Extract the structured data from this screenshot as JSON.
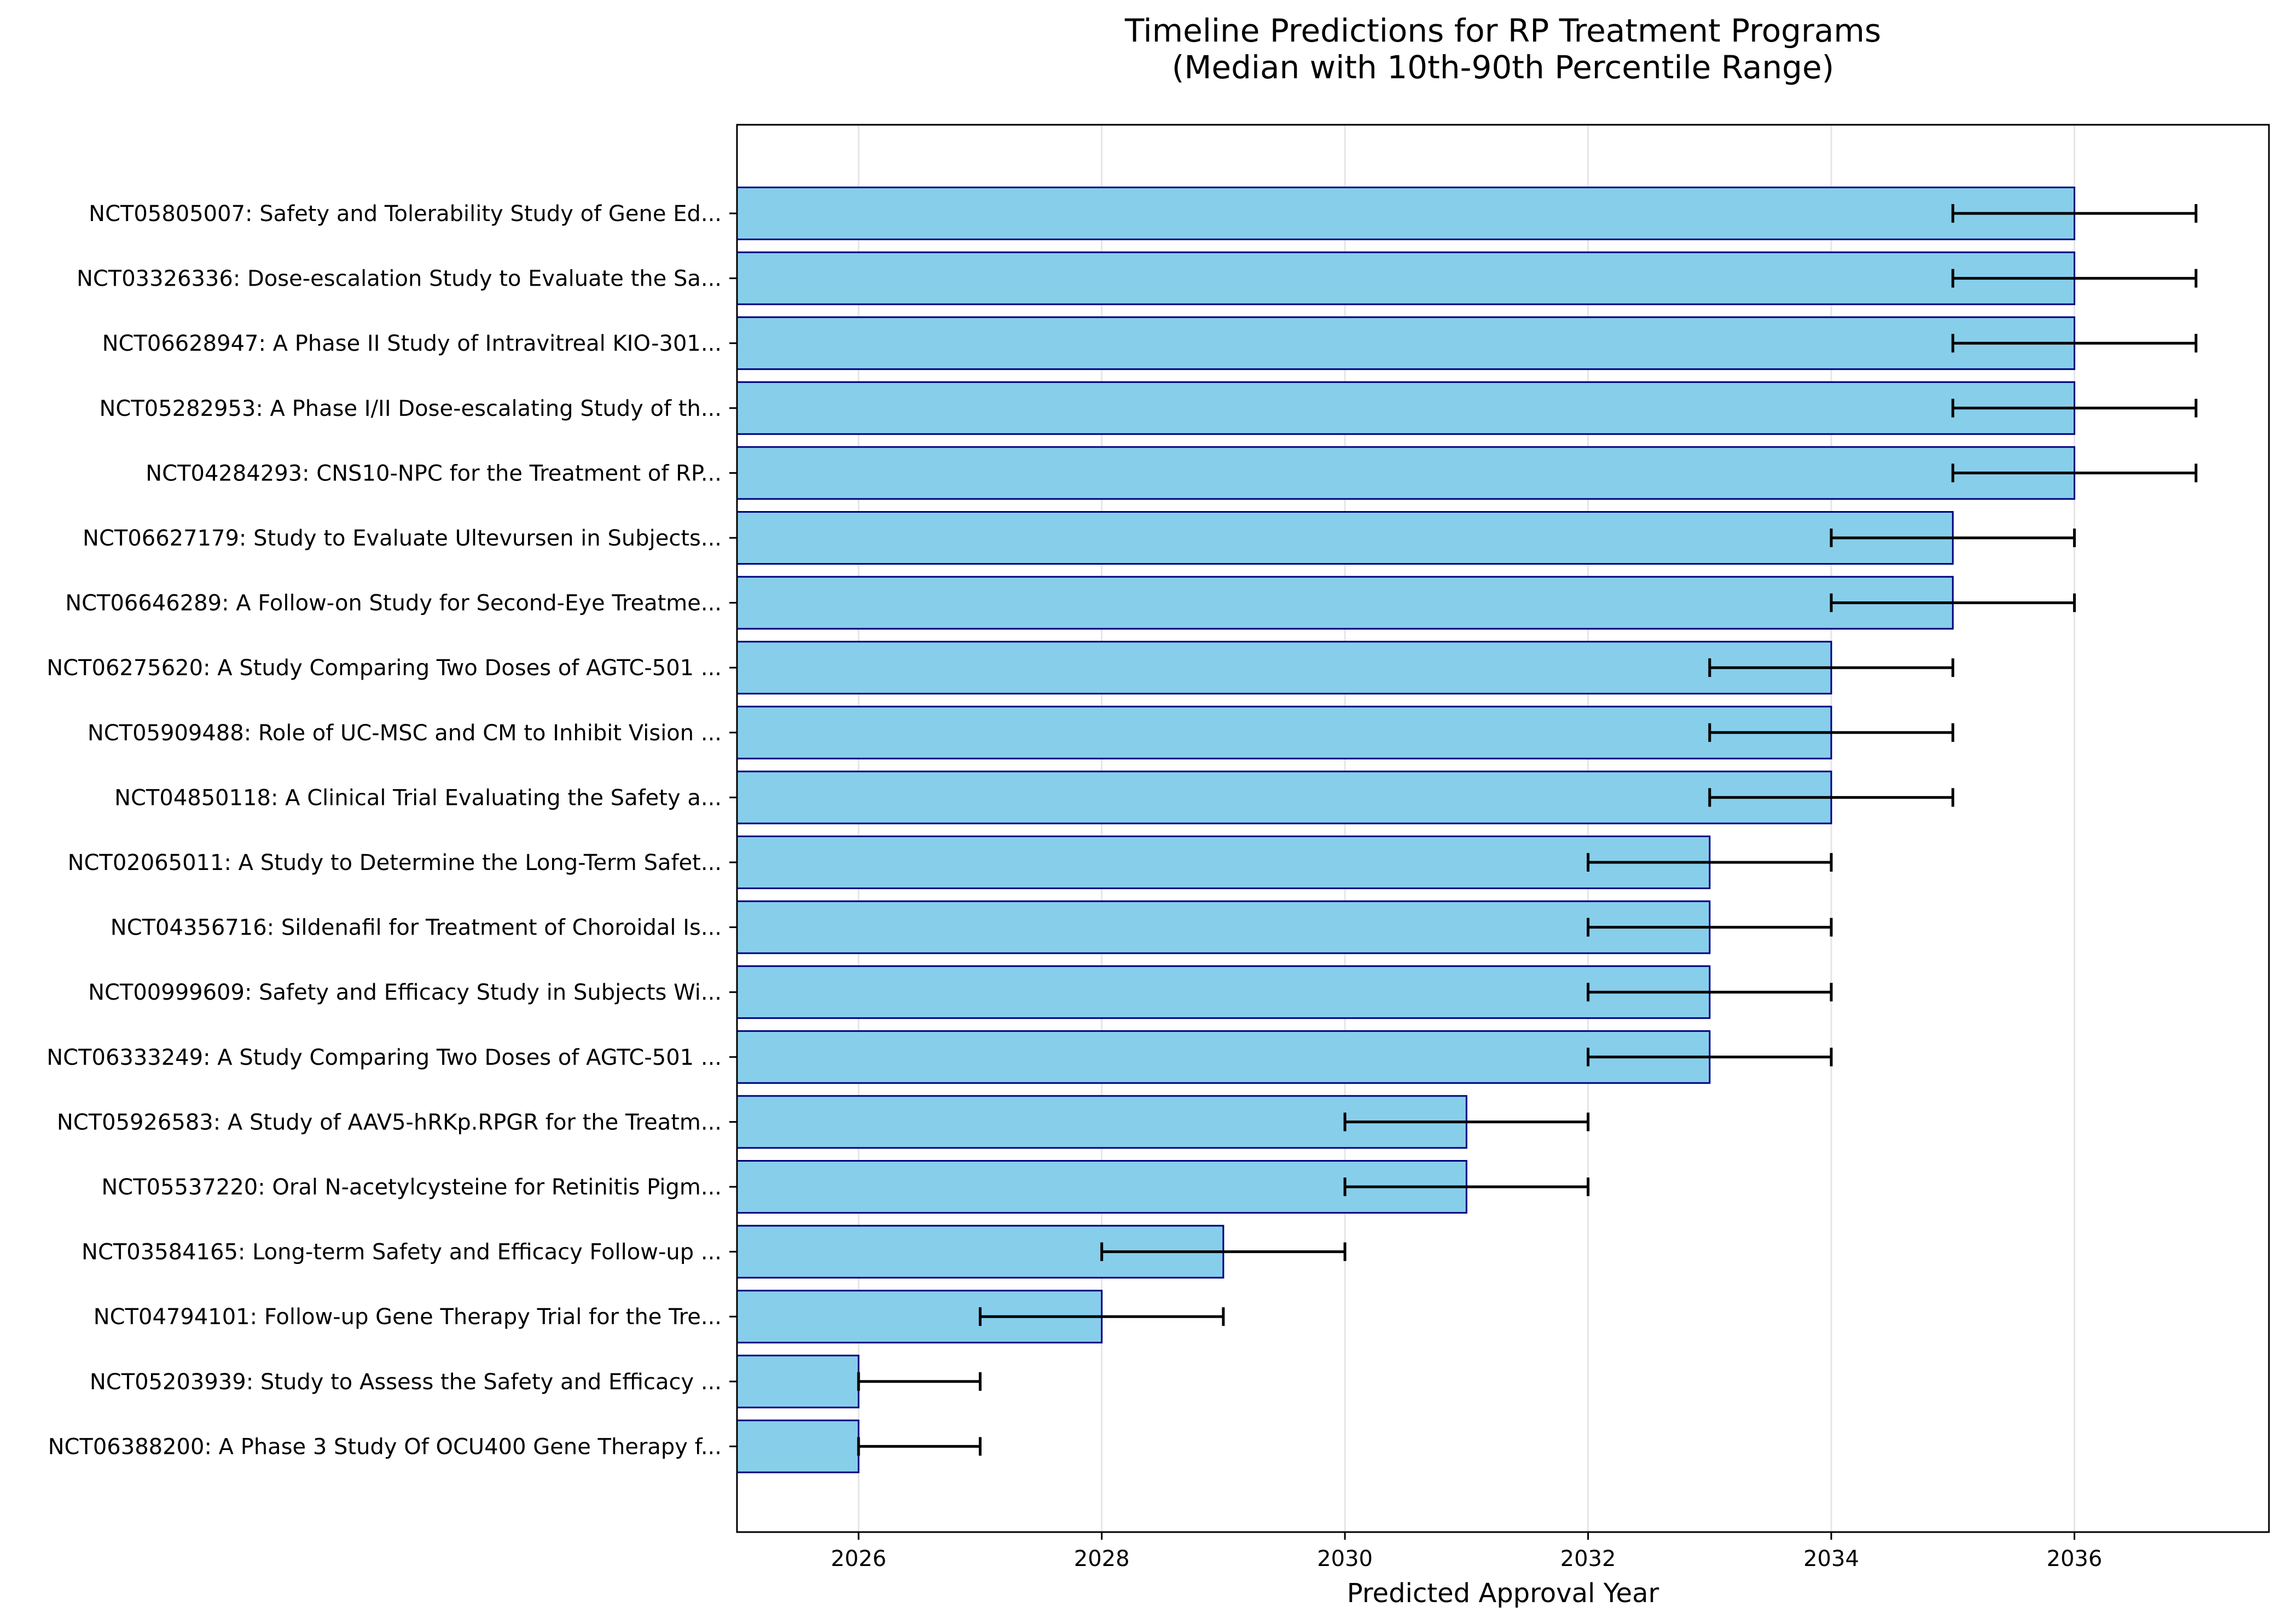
{
  "chart_data": {
    "type": "bar",
    "orientation": "horizontal",
    "title": "Timeline Predictions for RP Treatment Programs",
    "subtitle": "(Median with 10th-90th Percentile Range)",
    "xlabel": "Predicted Approval Year",
    "ylabel": "",
    "xlim": [
      2025,
      2037.6
    ],
    "xticks": [
      2026,
      2028,
      2030,
      2032,
      2034,
      2036
    ],
    "grid": "vertical",
    "legend": "none",
    "colors": {
      "bar_fill": "#87ceeb",
      "bar_edge": "#000080",
      "error_bar": "#000000",
      "grid": "#e6e6e6"
    },
    "categories": [
      "NCT05805007: Safety and Tolerability Study of Gene Ed...",
      "NCT03326336: Dose-escalation Study to Evaluate the Sa...",
      "NCT06628947: A Phase II Study of Intravitreal KIO-301...",
      "NCT05282953: A Phase I/II Dose-escalating Study of th...",
      "NCT04284293: CNS10-NPC for the Treatment of RP...",
      "NCT06627179: Study to Evaluate Ultevursen in Subjects...",
      "NCT06646289: A Follow-on Study for Second-Eye Treatme...",
      "NCT06275620: A Study Comparing Two Doses of AGTC-501 ...",
      "NCT05909488: Role of UC-MSC and CM to Inhibit Vision ...",
      "NCT04850118: A Clinical Trial Evaluating the Safety a...",
      "NCT02065011: A Study to Determine the Long-Term Safet...",
      "NCT04356716: Sildenafil for Treatment of Choroidal Is...",
      "NCT00999609: Safety and Efficacy Study in Subjects Wi...",
      "NCT06333249: A Study Comparing Two Doses of AGTC-501 ...",
      "NCT05926583: A Study of AAV5-hRKp.RPGR for the Treatm...",
      "NCT05537220: Oral N-acetylcysteine for Retinitis Pigm...",
      "NCT03584165: Long-term Safety and Efficacy Follow-up ...",
      "NCT04794101: Follow-up Gene Therapy Trial for the Tre...",
      "NCT05203939: Study to Assess the Safety and Efficacy ...",
      "NCT06388200: A Phase 3 Study Of OCU400 Gene Therapy f..."
    ],
    "median": [
      2036,
      2036,
      2036,
      2036,
      2036,
      2035,
      2035,
      2034,
      2034,
      2034,
      2033,
      2033,
      2033,
      2033,
      2031,
      2031,
      2029,
      2028,
      2026,
      2026
    ],
    "p10": [
      2035,
      2035,
      2035,
      2035,
      2035,
      2034,
      2034,
      2033,
      2033,
      2033,
      2032,
      2032,
      2032,
      2032,
      2030,
      2030,
      2028,
      2027,
      2026,
      2026
    ],
    "p90": [
      2037,
      2037,
      2037,
      2037,
      2037,
      2036,
      2036,
      2035,
      2035,
      2035,
      2034,
      2034,
      2034,
      2034,
      2032,
      2032,
      2030,
      2029,
      2027,
      2027
    ]
  }
}
